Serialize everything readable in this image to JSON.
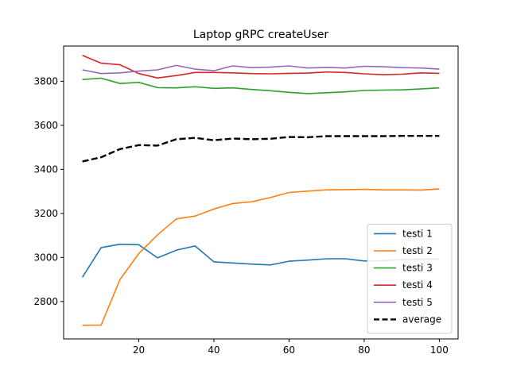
{
  "chart_data": {
    "type": "line",
    "title": "Laptop gRPC createUser",
    "xlabel": "",
    "ylabel": "",
    "xlim": [
      0,
      105
    ],
    "ylim": [
      2630,
      3960
    ],
    "grid": false,
    "legend_position": "lower-right",
    "x": [
      5,
      10,
      15,
      20,
      25,
      30,
      35,
      40,
      45,
      50,
      55,
      60,
      65,
      70,
      75,
      80,
      85,
      90,
      95,
      100
    ],
    "x_ticks": [
      20,
      40,
      60,
      80,
      100
    ],
    "y_ticks": [
      2800,
      3000,
      3200,
      3400,
      3600,
      3800
    ],
    "series": [
      {
        "name": "testi 1",
        "color": "#1f77b4",
        "dash": "solid",
        "values": [
          2910,
          3045,
          3060,
          3058,
          2998,
          3033,
          3052,
          2980,
          2975,
          2970,
          2966,
          2983,
          2988,
          2994,
          2994,
          2984,
          2985,
          2990,
          2992,
          2993
        ]
      },
      {
        "name": "testi 2",
        "color": "#ff7f0e",
        "dash": "solid",
        "values": [
          2692,
          2693,
          2900,
          3018,
          3103,
          3175,
          3188,
          3220,
          3245,
          3253,
          3272,
          3295,
          3301,
          3307,
          3308,
          3309,
          3307,
          3307,
          3306,
          3311
        ]
      },
      {
        "name": "testi 3",
        "color": "#2ca02c",
        "dash": "solid",
        "values": [
          3808,
          3814,
          3790,
          3795,
          3771,
          3770,
          3775,
          3768,
          3770,
          3763,
          3757,
          3750,
          3744,
          3748,
          3752,
          3758,
          3760,
          3761,
          3765,
          3770
        ]
      },
      {
        "name": "testi 4",
        "color": "#d62728",
        "dash": "solid",
        "values": [
          3918,
          3882,
          3875,
          3835,
          3815,
          3826,
          3840,
          3840,
          3838,
          3835,
          3834,
          3836,
          3837,
          3842,
          3840,
          3834,
          3830,
          3832,
          3838,
          3836
        ]
      },
      {
        "name": "testi 5",
        "color": "#9467bd",
        "dash": "solid",
        "values": [
          3852,
          3835,
          3838,
          3846,
          3852,
          3872,
          3855,
          3848,
          3870,
          3862,
          3864,
          3870,
          3860,
          3863,
          3860,
          3868,
          3866,
          3862,
          3860,
          3855
        ]
      },
      {
        "name": "average",
        "color": "#000000",
        "dash": "dashed",
        "values": [
          3436,
          3455,
          3492,
          3510,
          3508,
          3537,
          3543,
          3532,
          3540,
          3537,
          3539,
          3547,
          3546,
          3551,
          3551,
          3551,
          3551,
          3552,
          3552,
          3552
        ]
      }
    ]
  }
}
